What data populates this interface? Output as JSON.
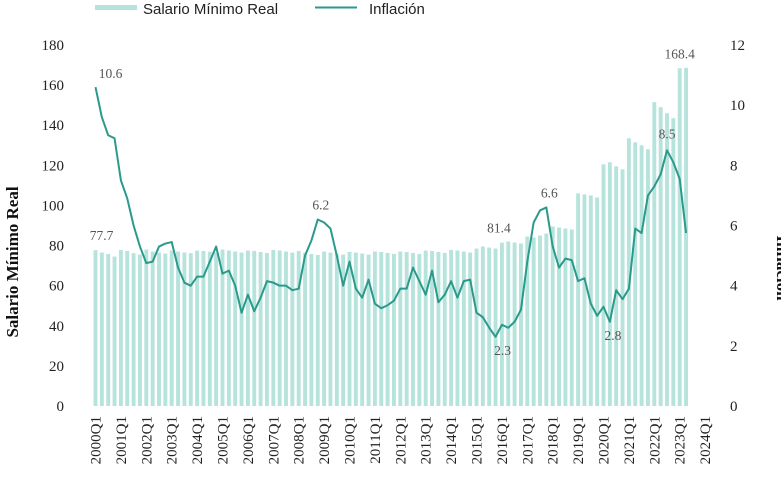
{
  "chart_data": {
    "type": "bar+line",
    "title": "",
    "colors": {
      "bars": "#b6e3dc",
      "line": "#2a9a8b",
      "text": "#222222",
      "annotation": "#555555"
    },
    "legend": {
      "position": "top",
      "entries": [
        "Salario Mínimo Real",
        "Inflación"
      ]
    },
    "y_left": {
      "label": "Salario Mínimo Real",
      "ylim": [
        0,
        180
      ],
      "ticks": [
        0,
        20,
        40,
        60,
        80,
        100,
        120,
        140,
        160,
        180
      ]
    },
    "y_right": {
      "label": "Inflación",
      "ylim": [
        0,
        12
      ],
      "ticks": [
        0,
        2,
        4,
        6,
        8,
        10,
        12
      ]
    },
    "x_labels": [
      "2000Q1",
      "2001Q1",
      "2002Q1",
      "2003Q1",
      "2004Q1",
      "2005Q1",
      "2006Q1",
      "2007Q1",
      "2008Q1",
      "2009Q1",
      "2010Q1",
      "2011Q1",
      "2012Q1",
      "2013Q1",
      "2014Q1",
      "2015Q1",
      "2016Q1",
      "2017Q1",
      "2018Q1",
      "2019Q1",
      "2020Q1",
      "2021Q1",
      "2022Q1",
      "2023Q1",
      "2024Q1"
    ],
    "x_label_quarter_index": [
      0,
      4,
      8,
      12,
      16,
      20,
      24,
      28,
      32,
      36,
      40,
      44,
      48,
      52,
      56,
      60,
      64,
      68,
      72,
      76,
      80,
      84,
      88,
      92,
      96
    ],
    "series": [
      {
        "name": "Salario Mínimo Real",
        "axis": "left",
        "kind": "bar",
        "values": [
          77.7,
          76.5,
          75.8,
          74.5,
          77.8,
          77.3,
          76.2,
          75.5,
          78.0,
          77.0,
          76.5,
          76.0,
          77.5,
          77.0,
          76.5,
          76.2,
          77.5,
          77.3,
          76.9,
          76.5,
          78.0,
          77.5,
          77.0,
          76.5,
          77.5,
          77.3,
          76.8,
          76.3,
          77.8,
          77.5,
          77.0,
          76.5,
          77.3,
          76.5,
          75.8,
          75.3,
          77.0,
          76.5,
          76.0,
          75.5,
          76.8,
          76.5,
          76.0,
          75.5,
          77.0,
          76.8,
          76.3,
          75.8,
          77.0,
          76.8,
          76.3,
          75.8,
          77.5,
          77.3,
          76.8,
          76.3,
          77.8,
          77.5,
          77.0,
          76.5,
          78.5,
          79.5,
          79.0,
          78.5,
          81.4,
          82.0,
          81.5,
          81.0,
          84.5,
          84.0,
          85.0,
          86.0,
          89.5,
          89.0,
          88.5,
          88.0,
          106.0,
          105.5,
          105.0,
          104.0,
          120.5,
          121.5,
          119.5,
          118.0,
          133.5,
          131.5,
          130.0,
          128.0,
          151.5,
          149.0,
          146.0,
          143.5,
          168.4,
          168.6
        ]
      },
      {
        "name": "Inflación",
        "axis": "right",
        "kind": "line",
        "values": [
          10.6,
          9.6,
          9.0,
          8.9,
          7.5,
          6.9,
          6.0,
          5.3,
          4.75,
          4.8,
          5.3,
          5.4,
          5.45,
          4.6,
          4.1,
          4.0,
          4.3,
          4.3,
          4.8,
          5.3,
          4.4,
          4.5,
          4.0,
          3.1,
          3.7,
          3.15,
          3.6,
          4.15,
          4.1,
          4.0,
          4.0,
          3.85,
          3.9,
          5.0,
          5.5,
          6.2,
          6.1,
          5.9,
          5.0,
          4.0,
          4.8,
          3.9,
          3.6,
          4.2,
          3.4,
          3.25,
          3.35,
          3.5,
          3.9,
          3.9,
          4.6,
          4.15,
          3.7,
          4.5,
          3.45,
          3.7,
          4.15,
          3.6,
          4.15,
          4.2,
          3.1,
          2.95,
          2.6,
          2.3,
          2.7,
          2.6,
          2.8,
          3.2,
          4.8,
          6.1,
          6.5,
          6.6,
          5.3,
          4.6,
          4.9,
          4.85,
          4.15,
          4.25,
          3.4,
          3.0,
          3.3,
          2.8,
          3.85,
          3.55,
          3.9,
          5.9,
          5.75,
          7.0,
          7.3,
          7.7,
          8.5,
          8.1,
          7.55,
          5.75
        ]
      }
    ],
    "annotations": [
      {
        "series": "Inflación",
        "index": 0,
        "text": "10.6"
      },
      {
        "series": "Salario Mínimo Real",
        "index": 0,
        "text": "77.7"
      },
      {
        "series": "Inflación",
        "index": 35,
        "text": "6.2"
      },
      {
        "series": "Inflación",
        "index": 63,
        "text": "2.3"
      },
      {
        "series": "Salario Mínimo Real",
        "index": 64,
        "text": "81.4"
      },
      {
        "series": "Inflación",
        "index": 71,
        "text": "6.6"
      },
      {
        "series": "Inflación",
        "index": 81,
        "text": "2.8"
      },
      {
        "series": "Inflación",
        "index": 90,
        "text": "8.5"
      },
      {
        "series": "Salario Mínimo Real",
        "index": 92,
        "text": "168.4"
      }
    ]
  }
}
